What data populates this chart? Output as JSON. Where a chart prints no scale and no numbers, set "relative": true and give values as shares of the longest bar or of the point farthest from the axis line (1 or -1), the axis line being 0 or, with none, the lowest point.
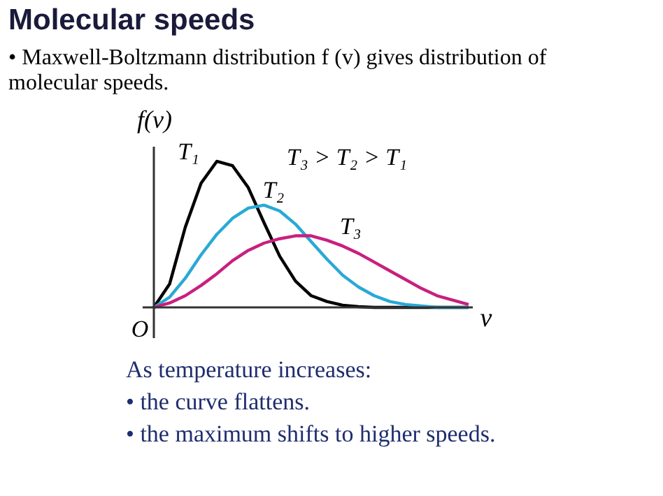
{
  "chart_data": {
    "type": "line",
    "relative": true,
    "title": "Molecular speeds",
    "subtitle": "• Maxwell-Boltzmann distribution f (v) gives distribution of molecular speeds.",
    "xlabel": "v",
    "ylabel": "f(v)",
    "legend": false,
    "grid": false,
    "marker": "none",
    "line_style": "solid",
    "categories": [
      null,
      null,
      null,
      null,
      null,
      null,
      null,
      null,
      null,
      null,
      null,
      null,
      null,
      null,
      null,
      null,
      null,
      null,
      null,
      null,
      null
    ],
    "series": [
      {
        "name": "T₁",
        "color": "#000000",
        "values": [
          0,
          0.16,
          0.55,
          0.85,
          1,
          0.97,
          0.82,
          0.58,
          0.35,
          0.18,
          0.08,
          0.04,
          0.015,
          0.005,
          0,
          0,
          0,
          0,
          0,
          0,
          0
        ]
      },
      {
        "name": "T₂",
        "color": "#29a9d6",
        "values": [
          0,
          0.07,
          0.2,
          0.36,
          0.5,
          0.61,
          0.68,
          0.7,
          0.66,
          0.57,
          0.45,
          0.33,
          0.22,
          0.14,
          0.08,
          0.04,
          0.02,
          0.01,
          0,
          0,
          0
        ]
      },
      {
        "name": "T₃",
        "color": "#c8207f",
        "values": [
          0,
          0.03,
          0.08,
          0.15,
          0.23,
          0.32,
          0.39,
          0.44,
          0.47,
          0.49,
          0.49,
          0.46,
          0.42,
          0.37,
          0.31,
          0.25,
          0.19,
          0.13,
          0.08,
          0.05,
          0.02
        ]
      }
    ],
    "annotations": [
      "T₃ > T₂ > T₁",
      "O",
      "As temperature increases:",
      "• the curve flattens.",
      "• the maximum shifts to higher speeds."
    ]
  }
}
